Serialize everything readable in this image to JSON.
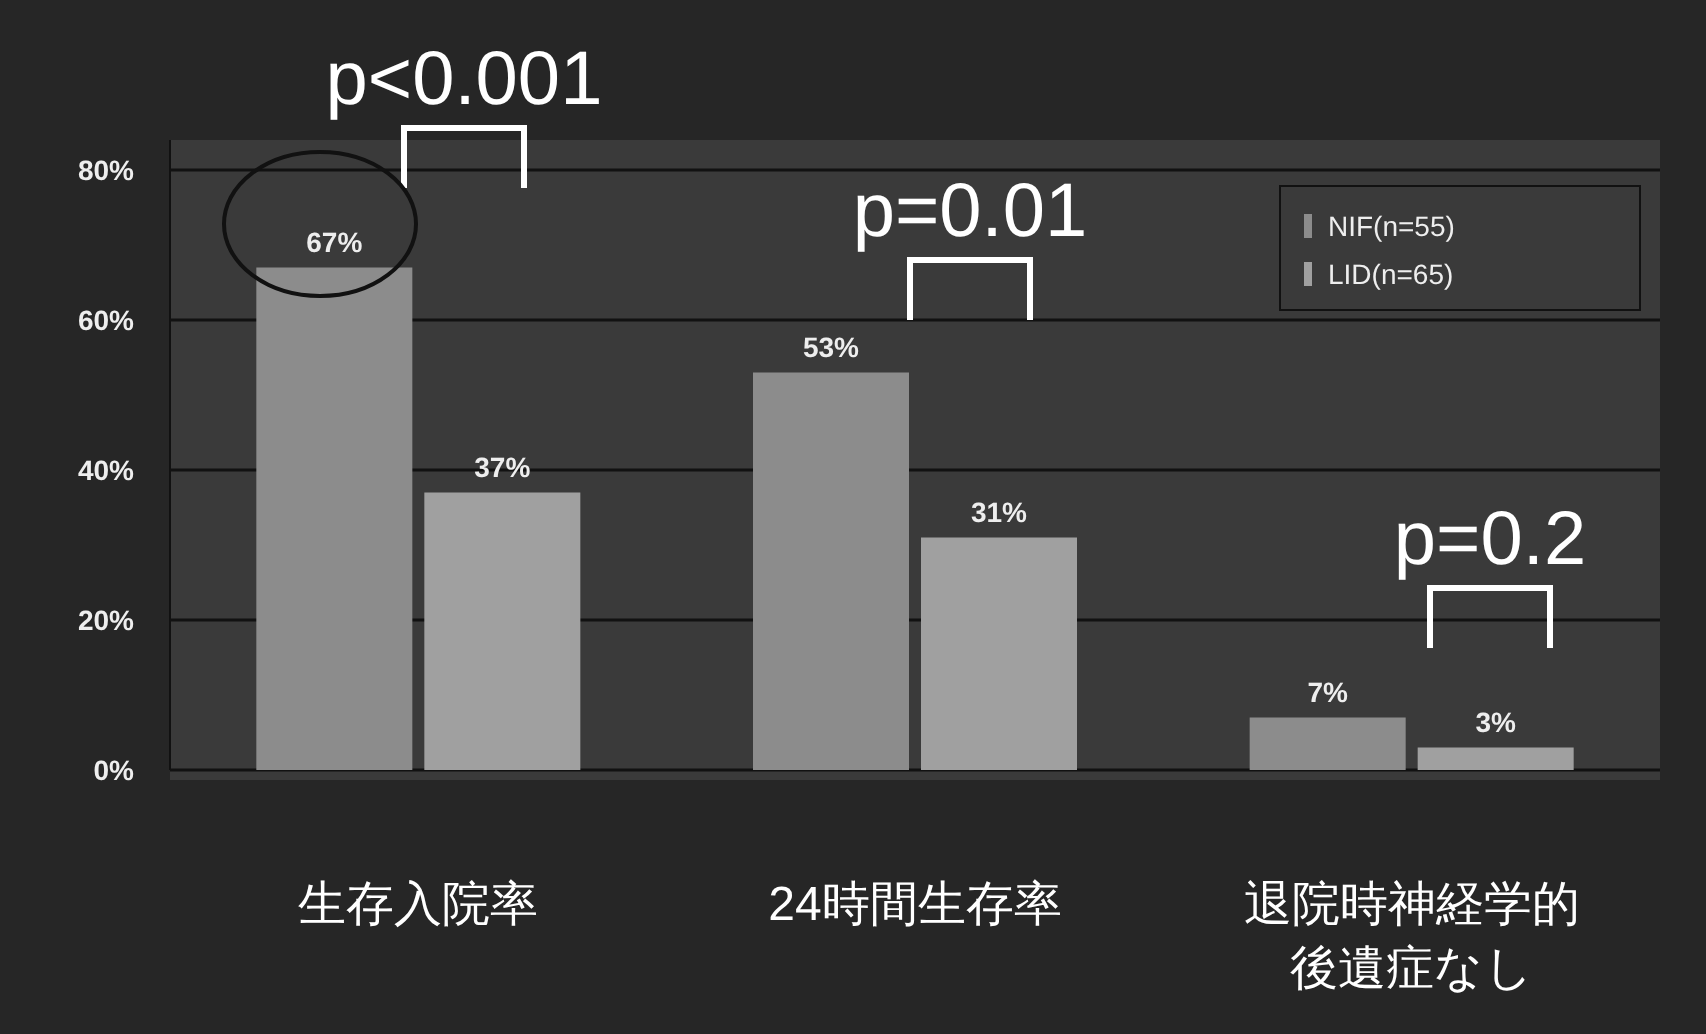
{
  "chart_data": {
    "type": "bar",
    "categories": [
      "生存入院率",
      "24時間生存率",
      "退院時神経学的後遺症なし"
    ],
    "series": [
      {
        "name": "NIF(n=55)",
        "color": "#8c8c8c",
        "values": [
          67,
          53,
          7
        ],
        "value_labels": [
          "67%",
          "53%",
          "7%"
        ]
      },
      {
        "name": "LID(n=65)",
        "color": "#a0a0a0",
        "values": [
          37,
          31,
          3
        ],
        "value_labels": [
          "37%",
          "31%",
          "3%"
        ]
      }
    ],
    "ylim": [
      0,
      80
    ],
    "yticks": [
      {
        "value": 0,
        "label": "0%"
      },
      {
        "value": 20,
        "label": "20%"
      },
      {
        "value": 40,
        "label": "40%"
      },
      {
        "value": 60,
        "label": "60%"
      },
      {
        "value": 80,
        "label": "80%"
      }
    ],
    "grid": "y",
    "legend": "top right",
    "annotations": [
      "p<0.001",
      "p=0.01",
      "p=0.2"
    ]
  }
}
